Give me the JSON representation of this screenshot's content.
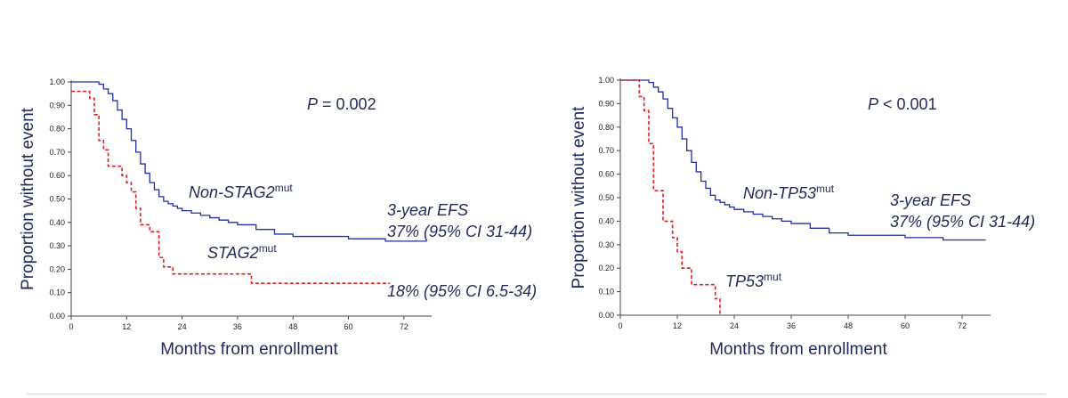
{
  "chart_data": [
    {
      "type": "line",
      "title": "",
      "xlabel": "Months from enrollment",
      "ylabel": "Proportion without event",
      "xlim": [
        0,
        78
      ],
      "ylim": [
        0,
        1
      ],
      "xticks": [
        "0",
        "12",
        "24",
        "36",
        "48",
        "60",
        "72"
      ],
      "yticks": [
        "0.00",
        "0.10",
        "0.20",
        "0.30",
        "0.40",
        "0.50",
        "0.60",
        "0.70",
        "0.80",
        "0.90",
        "1.00"
      ],
      "pvalue": {
        "prefix": "P",
        "rest": " = 0.002"
      },
      "annotations": {
        "efs_label": "3-year EFS",
        "efs_top": "37% (95% CI 31-44)",
        "efs_bottom": "18% (95% CI 6.5-34)"
      },
      "series": [
        {
          "name": "Non-STAG2",
          "name_sup": "mut",
          "color": "#1f2fa8",
          "dash": false,
          "x": [
            0,
            5,
            6,
            7,
            8,
            9,
            10,
            11,
            12,
            13,
            14,
            15,
            16,
            17,
            18,
            19,
            20,
            21,
            22,
            23,
            24,
            26,
            28,
            30,
            32,
            34,
            36,
            40,
            44,
            48,
            52,
            56,
            60,
            64,
            68,
            72,
            77
          ],
          "y": [
            1.0,
            1.0,
            0.99,
            0.97,
            0.95,
            0.92,
            0.88,
            0.84,
            0.8,
            0.75,
            0.7,
            0.65,
            0.61,
            0.57,
            0.54,
            0.51,
            0.49,
            0.48,
            0.47,
            0.46,
            0.45,
            0.44,
            0.43,
            0.42,
            0.41,
            0.4,
            0.39,
            0.37,
            0.35,
            0.34,
            0.34,
            0.34,
            0.33,
            0.33,
            0.32,
            0.32,
            0.32
          ]
        },
        {
          "name": "STAG2",
          "name_sup": "mut",
          "color": "#e02020",
          "dash": true,
          "x": [
            0,
            1,
            4,
            5,
            6,
            7,
            8,
            10,
            11,
            12,
            13,
            14,
            15,
            16,
            17,
            18,
            19,
            20,
            21,
            22,
            24,
            27,
            30,
            33,
            36,
            39,
            42,
            48,
            54,
            60,
            66,
            69
          ],
          "y": [
            0.96,
            0.96,
            0.93,
            0.86,
            0.75,
            0.71,
            0.64,
            0.64,
            0.6,
            0.57,
            0.53,
            0.46,
            0.39,
            0.39,
            0.36,
            0.36,
            0.25,
            0.21,
            0.21,
            0.18,
            0.18,
            0.18,
            0.18,
            0.18,
            0.18,
            0.14,
            0.14,
            0.14,
            0.14,
            0.14,
            0.14,
            0.14
          ]
        }
      ]
    },
    {
      "type": "line",
      "title": "",
      "xlabel": "Months from enrollment",
      "ylabel": "Proportion without event",
      "xlim": [
        0,
        78
      ],
      "ylim": [
        0,
        1
      ],
      "xticks": [
        "0",
        "12",
        "24",
        "36",
        "48",
        "60",
        "72"
      ],
      "yticks": [
        "0.00",
        "0.10",
        "0.20",
        "0.30",
        "0.40",
        "0.50",
        "0.60",
        "0.70",
        "0.80",
        "0.90",
        "1.00"
      ],
      "pvalue": {
        "prefix": "P",
        "rest": " < 0.001"
      },
      "annotations": {
        "efs_label": "3-year EFS",
        "efs_top": "37% (95% CI 31-44)"
      },
      "series": [
        {
          "name": "Non-TP53",
          "name_sup": "mut",
          "color": "#1f2fa8",
          "dash": false,
          "x": [
            0,
            5,
            6,
            7,
            8,
            9,
            10,
            11,
            12,
            13,
            14,
            15,
            16,
            17,
            18,
            19,
            20,
            21,
            22,
            23,
            24,
            26,
            28,
            30,
            32,
            34,
            36,
            40,
            44,
            48,
            52,
            56,
            60,
            64,
            68,
            72,
            77
          ],
          "y": [
            1.0,
            1.0,
            0.99,
            0.97,
            0.95,
            0.92,
            0.88,
            0.84,
            0.8,
            0.75,
            0.7,
            0.65,
            0.61,
            0.57,
            0.54,
            0.51,
            0.49,
            0.48,
            0.47,
            0.46,
            0.45,
            0.44,
            0.43,
            0.42,
            0.41,
            0.4,
            0.39,
            0.37,
            0.35,
            0.34,
            0.34,
            0.34,
            0.33,
            0.33,
            0.32,
            0.32,
            0.32
          ]
        },
        {
          "name": "TP53",
          "name_sup": "mut",
          "color": "#e02020",
          "dash": true,
          "x": [
            0,
            3,
            4,
            5,
            6,
            7,
            8,
            9,
            10,
            11,
            12,
            13,
            14,
            15,
            17,
            19,
            20,
            21
          ],
          "y": [
            1.0,
            1.0,
            0.93,
            0.87,
            0.73,
            0.53,
            0.53,
            0.4,
            0.4,
            0.33,
            0.27,
            0.2,
            0.2,
            0.13,
            0.13,
            0.13,
            0.07,
            0.0
          ]
        }
      ]
    }
  ]
}
